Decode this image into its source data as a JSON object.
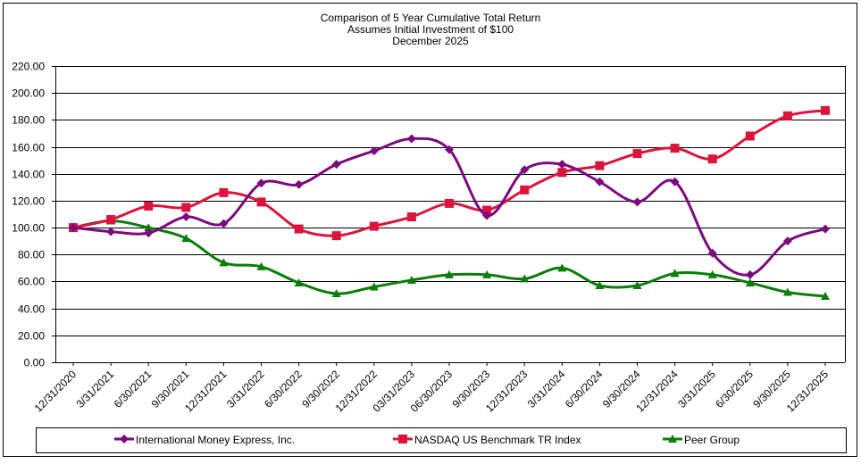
{
  "chart_data": {
    "type": "line",
    "title": [
      "Comparison of 5 Year Cumulative Total Return",
      "Assumes Initial Investment of $100",
      "December 2025"
    ],
    "xlabel": "",
    "ylabel": "",
    "ylim": [
      0,
      220
    ],
    "yticks": [
      "0.00",
      "20.00",
      "40.00",
      "60.00",
      "80.00",
      "100.00",
      "120.00",
      "140.00",
      "160.00",
      "180.00",
      "200.00",
      "220.00"
    ],
    "grid": true,
    "legend_placement": "bottom",
    "categories": [
      "12/31/2020",
      "3/31/2021",
      "6/30/2021",
      "9/30/2021",
      "12/31/2021",
      "3/31/2022",
      "6/30/2022",
      "9/30/2022",
      "12/31/2022",
      "03/31/2023",
      "06/30/2023",
      "9/30/2023",
      "12/31/2023",
      "3/31/2024",
      "6/30/2024",
      "9/30/2024",
      "12/31/2024",
      "3/31/2025",
      "6/30/2025",
      "9/30/2025",
      "12/31/2025"
    ],
    "series": [
      {
        "name": "International Money Express, Inc.",
        "color": "#7B0A7F",
        "marker": "diamond",
        "values": [
          100,
          97,
          96,
          108,
          103,
          133,
          132,
          147,
          157,
          166,
          158,
          109,
          143,
          147,
          134,
          119,
          134,
          81,
          65,
          90,
          99
        ]
      },
      {
        "name": "NASDAQ US Benchmark TR Index",
        "color": "#DC143C",
        "marker": "square",
        "values": [
          100,
          106,
          116,
          115,
          126,
          119,
          99,
          94,
          101,
          108,
          118,
          113,
          128,
          141,
          146,
          155,
          159,
          151,
          168,
          183,
          187
        ]
      },
      {
        "name": "Peer Group",
        "color": "#0A7D0A",
        "marker": "triangle",
        "values": [
          100,
          105,
          100,
          92,
          74,
          71,
          59,
          51,
          56,
          61,
          65,
          65,
          62,
          70,
          57,
          57,
          66,
          65,
          59,
          52,
          49
        ]
      }
    ]
  }
}
